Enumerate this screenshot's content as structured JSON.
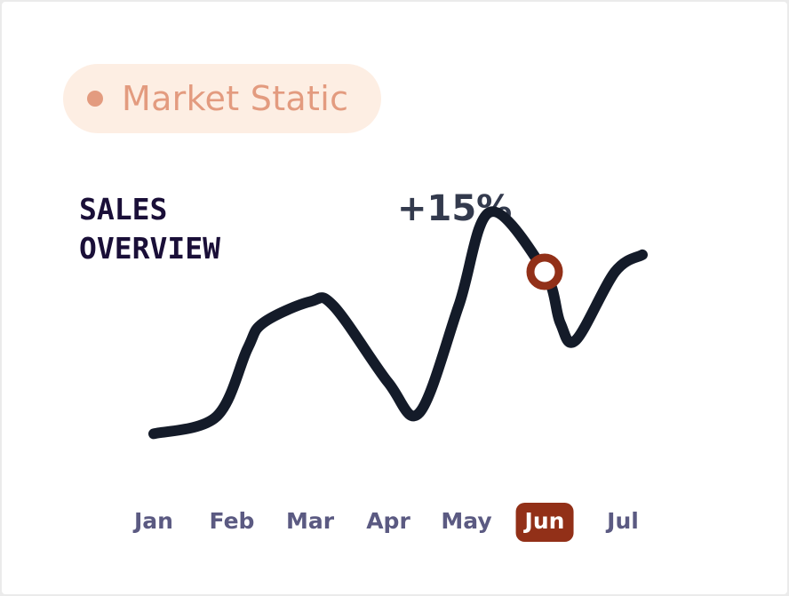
{
  "badge": {
    "label": "Market Static"
  },
  "chart_data": {
    "type": "line",
    "title_lines": [
      "SALES",
      "OVERVIEW"
    ],
    "change_label": "+15%",
    "categories": [
      "Jan",
      "Feb",
      "Mar",
      "Apr",
      "May",
      "Jun",
      "Jul"
    ],
    "highlighted_category": "Jun",
    "series": [
      {
        "x": [
          0.0,
          0.8,
          1.2,
          1.4,
          2.0,
          2.3,
          3.0,
          3.4,
          3.9,
          4.3,
          5.0,
          5.2,
          5.4,
          5.9,
          6.25
        ],
        "values": [
          12,
          16,
          32,
          38,
          43,
          42,
          24,
          17,
          42,
          64,
          50,
          38,
          34,
          50,
          54
        ]
      }
    ],
    "marker": {
      "x": 5.0,
      "y": 50
    },
    "ylim": [
      0,
      80
    ],
    "grid": false,
    "legend": "none"
  },
  "colors": {
    "line": "#141b29",
    "accent": "#923018",
    "badge_dot": "#e39b7f",
    "badge_text": "#e39b7f"
  }
}
